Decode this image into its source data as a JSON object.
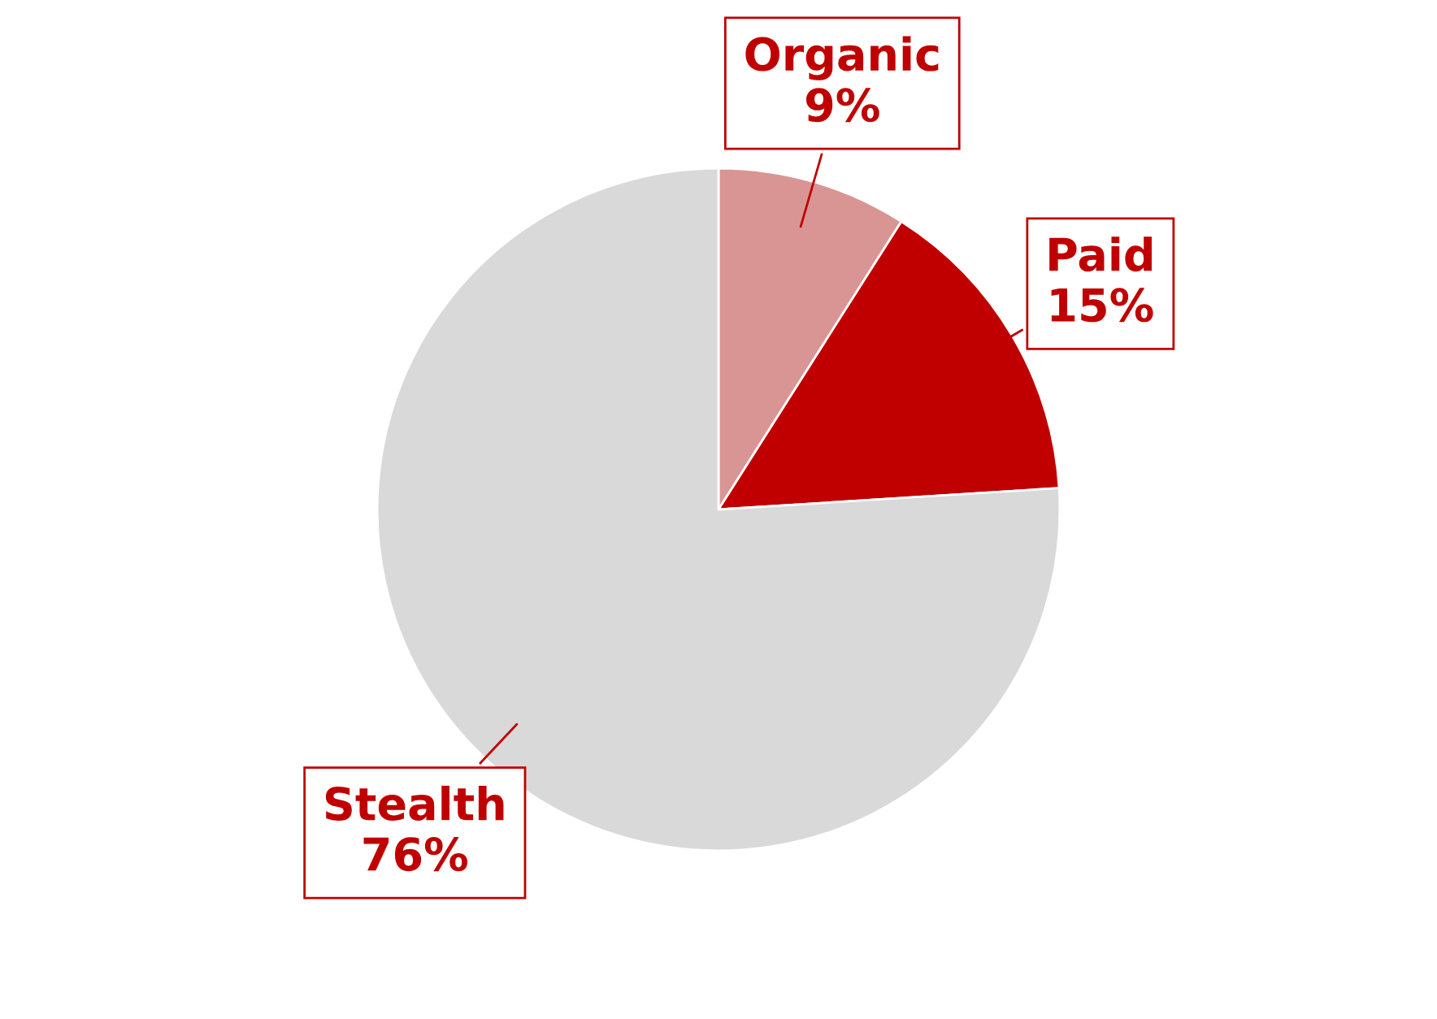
{
  "chart_data": {
    "type": "pie",
    "categories": [
      "Organic",
      "Paid",
      "Stealth"
    ],
    "values": [
      9,
      15,
      76
    ],
    "value_labels": [
      "9%",
      "15%",
      "76%"
    ],
    "colors": [
      "#d99594",
      "#c00000",
      "#d9d9d9"
    ],
    "legend": false
  }
}
